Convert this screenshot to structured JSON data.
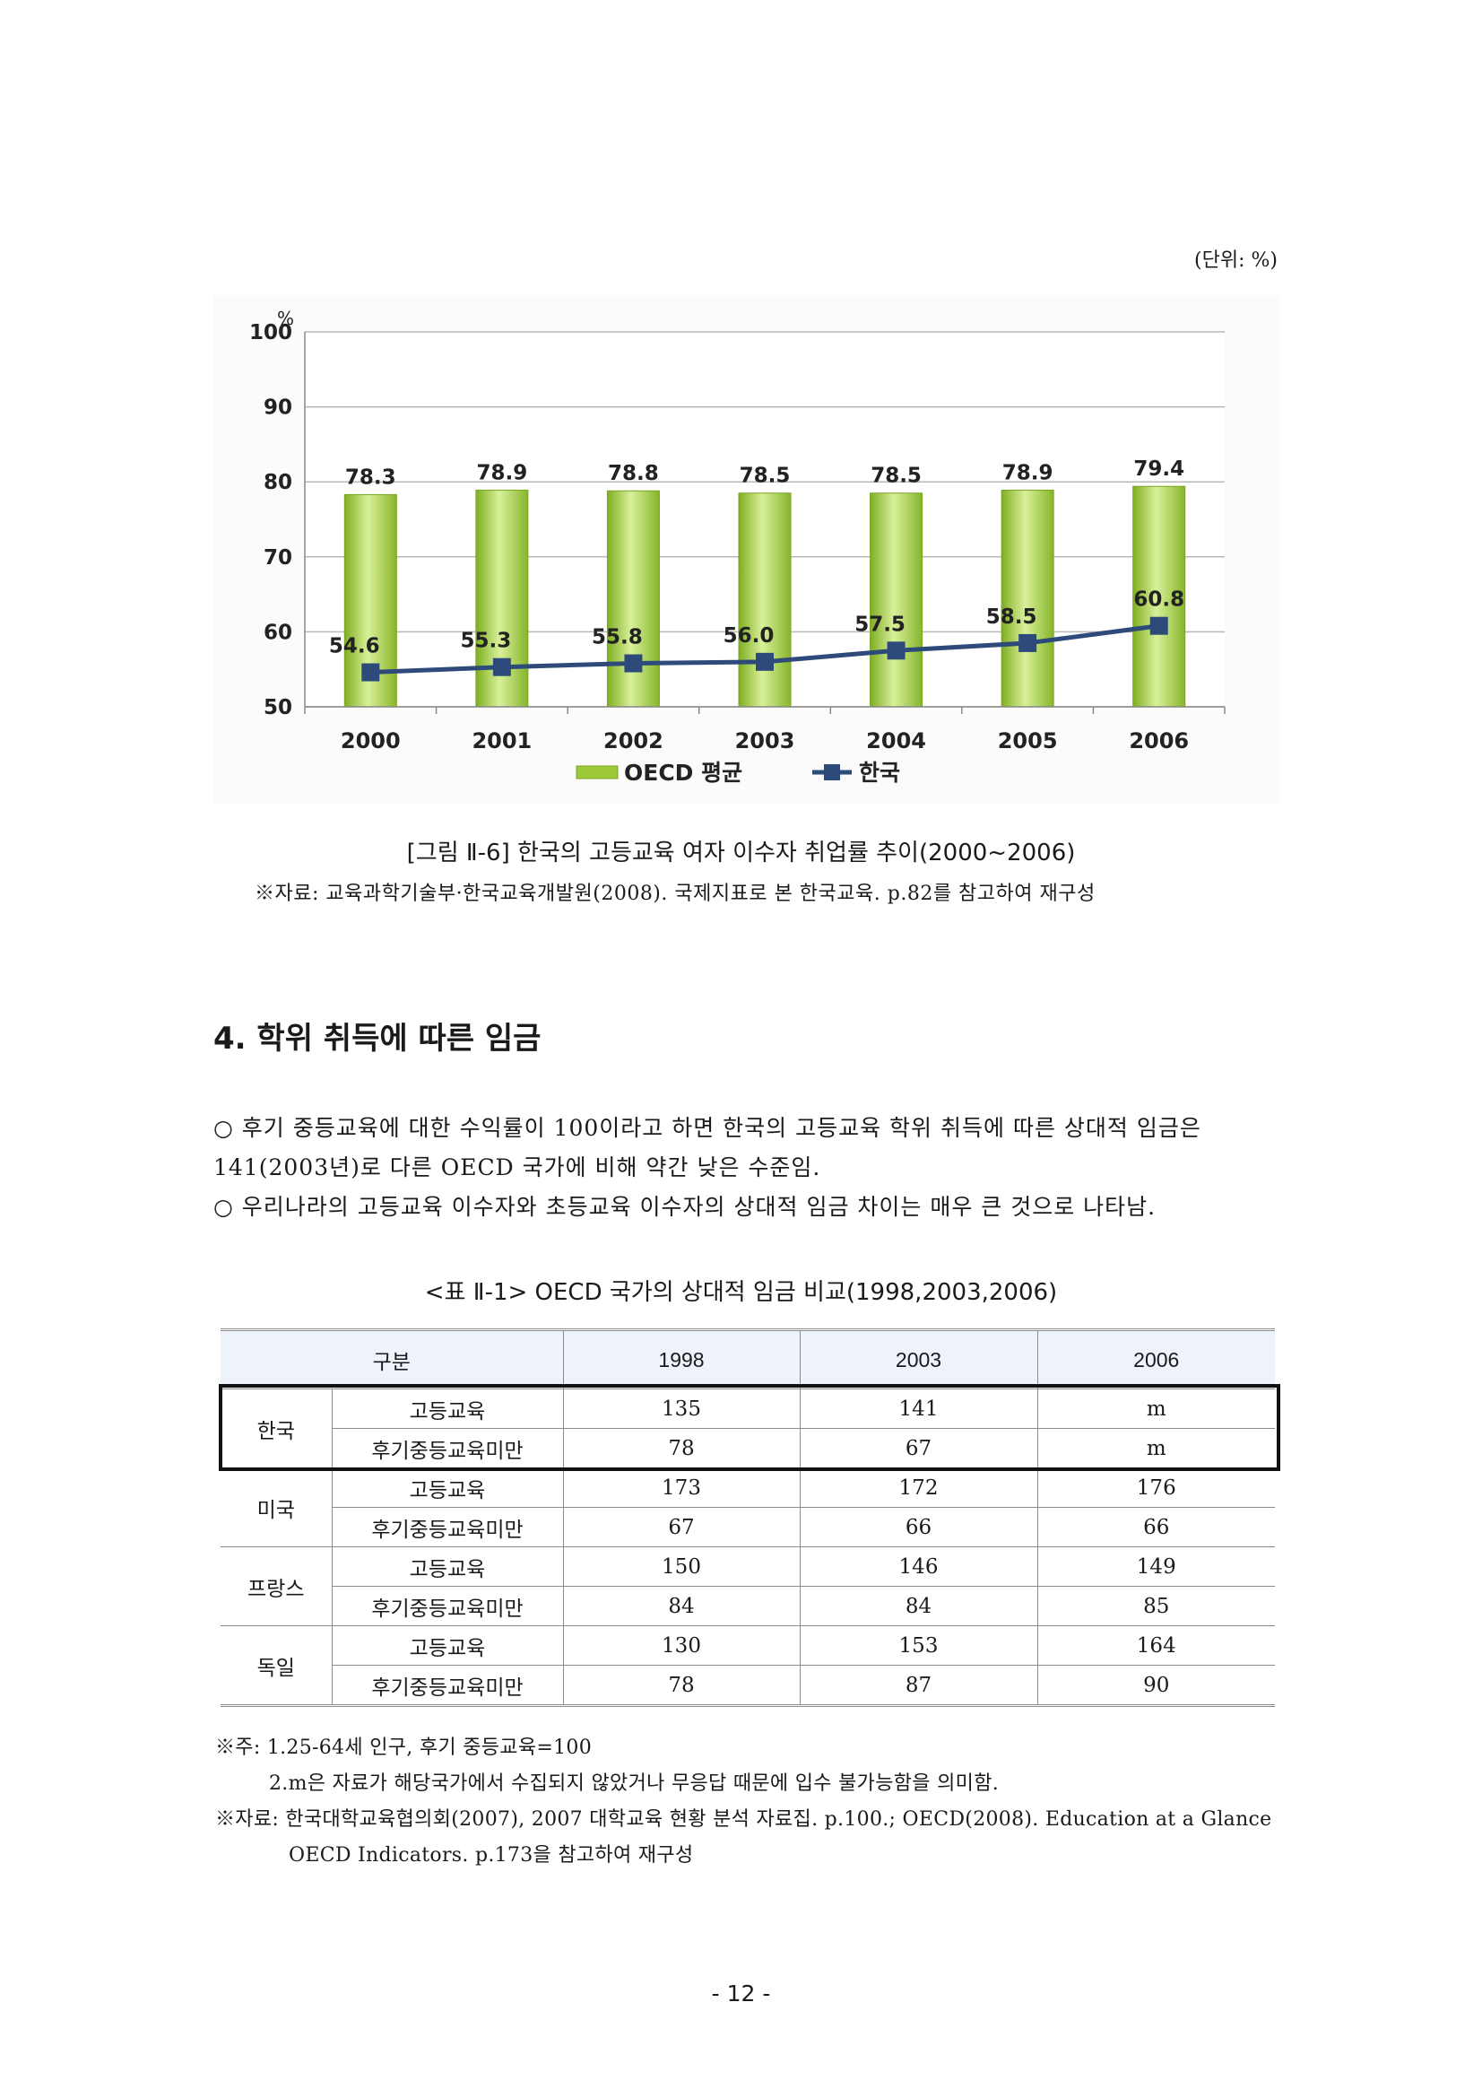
{
  "unit_label": "(단위: %)",
  "chart_data": {
    "type": "bar",
    "categories": [
      "2000",
      "2001",
      "2002",
      "2003",
      "2004",
      "2005",
      "2006"
    ],
    "series": [
      {
        "name": "OECD 평균",
        "type": "bar",
        "values": [
          78.3,
          78.9,
          78.8,
          78.5,
          78.5,
          78.9,
          79.4
        ],
        "color": "#9cc83a"
      },
      {
        "name": "한국",
        "type": "line",
        "values": [
          54.6,
          55.3,
          55.8,
          56.0,
          57.5,
          58.5,
          60.8
        ],
        "color": "#2e4a7a"
      }
    ],
    "ylabel": "%",
    "ylim": [
      50,
      100
    ],
    "yticks": [
      50,
      60,
      70,
      80,
      90,
      100
    ],
    "grid": true,
    "legend": "bottom"
  },
  "figure": {
    "caption": "[그림 Ⅱ-6] 한국의 고등교육 여자 이수자 취업률 추이(2000~2006)",
    "source": "※자료: 교육과학기술부·한국교육개발원(2008). 국제지표로 본 한국교육. p.82를 참고하여 재구성"
  },
  "section": {
    "heading": "4. 학위 취득에 따른 임금",
    "paragraphs": [
      "○ 후기 중등교육에 대한 수익률이 100이라고 하면 한국의 고등교육 학위 취득에 따른 상대적 임금은 141(2003년)로 다른 OECD 국가에 비해 약간 낮은 수준임.",
      "○ 우리나라의 고등교육 이수자와 초등교육 이수자의 상대적 임금 차이는 매우 큰 것으로 나타남."
    ]
  },
  "table": {
    "caption": "<표 Ⅱ-1> OECD 국가의 상대적 임금 비교(1998,2003,2006)",
    "headers": [
      "구분",
      "1998",
      "2003",
      "2006"
    ],
    "groups": [
      {
        "country": "한국",
        "rows": [
          {
            "level": "고등교육",
            "values": [
              "135",
              "141",
              "m"
            ]
          },
          {
            "level": "후기중등교육미만",
            "values": [
              "78",
              "67",
              "m"
            ]
          }
        ]
      },
      {
        "country": "미국",
        "rows": [
          {
            "level": "고등교육",
            "values": [
              "173",
              "172",
              "176"
            ]
          },
          {
            "level": "후기중등교육미만",
            "values": [
              "67",
              "66",
              "66"
            ]
          }
        ]
      },
      {
        "country": "프랑스",
        "rows": [
          {
            "level": "고등교육",
            "values": [
              "150",
              "146",
              "149"
            ]
          },
          {
            "level": "후기중등교육미만",
            "values": [
              "84",
              "84",
              "85"
            ]
          }
        ]
      },
      {
        "country": "독일",
        "rows": [
          {
            "level": "고등교육",
            "values": [
              "130",
              "153",
              "164"
            ]
          },
          {
            "level": "후기중등교육미만",
            "values": [
              "78",
              "87",
              "90"
            ]
          }
        ]
      }
    ]
  },
  "notes": [
    "※주: 1.25-64세 인구, 후기 중등교육=100",
    "2.m은 자료가 해당국가에서 수집되지 않았거나 무응답 때문에 입수 불가능함을 의미함.",
    "※자료: 한국대학교육협의회(2007), 2007 대학교육 현황 분석 자료집. p.100.; OECD(2008). Education at a Glance",
    "OECD Indicators. p.173을 참고하여 재구성"
  ],
  "page_number": "- 12 -"
}
